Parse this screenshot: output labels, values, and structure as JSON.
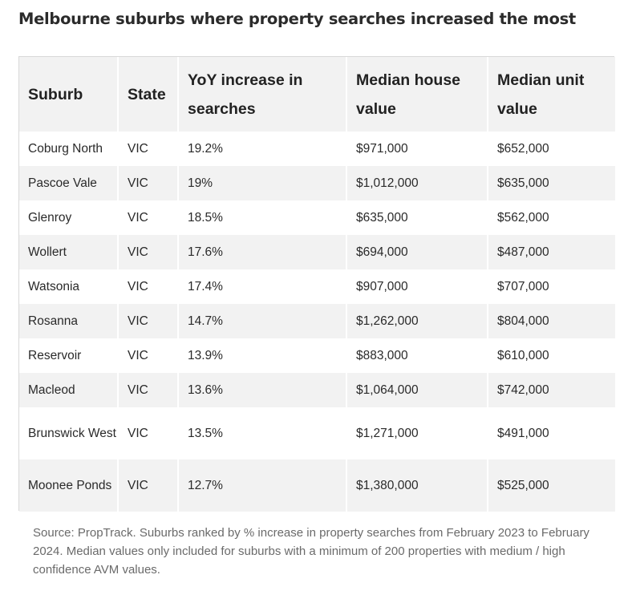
{
  "title": "Melbourne suburbs where property searches increased the most",
  "table": {
    "headers": {
      "suburb": "Suburb",
      "state": "State",
      "yoy": "YoY increase in searches",
      "house": "Median house value",
      "unit": "Median unit value"
    },
    "rows": [
      {
        "suburb": "Coburg North",
        "state": "VIC",
        "yoy": "19.2%",
        "house": "$971,000",
        "unit": "$652,000"
      },
      {
        "suburb": "Pascoe Vale",
        "state": "VIC",
        "yoy": "19%",
        "house": "$1,012,000",
        "unit": "$635,000"
      },
      {
        "suburb": "Glenroy",
        "state": "VIC",
        "yoy": "18.5%",
        "house": "$635,000",
        "unit": "$562,000"
      },
      {
        "suburb": "Wollert",
        "state": "VIC",
        "yoy": "17.6%",
        "house": "$694,000",
        "unit": "$487,000"
      },
      {
        "suburb": "Watsonia",
        "state": "VIC",
        "yoy": "17.4%",
        "house": "$907,000",
        "unit": "$707,000"
      },
      {
        "suburb": "Rosanna",
        "state": "VIC",
        "yoy": "14.7%",
        "house": "$1,262,000",
        "unit": "$804,000"
      },
      {
        "suburb": "Reservoir",
        "state": "VIC",
        "yoy": "13.9%",
        "house": "$883,000",
        "unit": "$610,000"
      },
      {
        "suburb": "Macleod",
        "state": "VIC",
        "yoy": "13.6%",
        "house": "$1,064,000",
        "unit": "$742,000"
      },
      {
        "suburb": "Brunswick West",
        "state": "VIC",
        "yoy": "13.5%",
        "house": "$1,271,000",
        "unit": "$491,000"
      },
      {
        "suburb": "Moonee Ponds",
        "state": "VIC",
        "yoy": "12.7%",
        "house": "$1,380,000",
        "unit": "$525,000"
      }
    ]
  },
  "source": "Source: PropTrack. Suburbs ranked by % increase in property searches from February 2023 to February 2024. Median values only included for suburbs with a minimum of 200 properties with medium / high confidence AVM values."
}
